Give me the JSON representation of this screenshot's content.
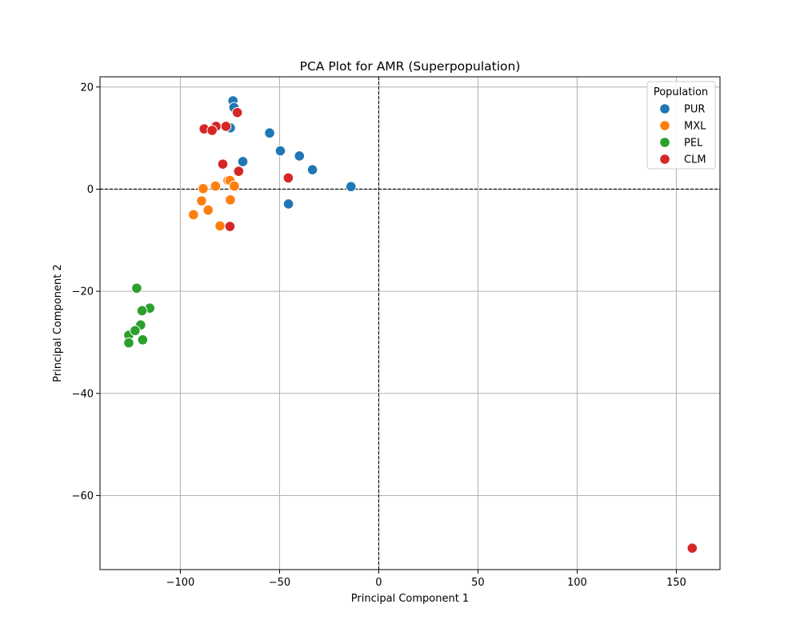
{
  "chart_data": {
    "type": "scatter",
    "title": "PCA Plot for AMR (Superpopulation)",
    "xlabel": "Principal Component 1",
    "ylabel": "Principal Component 2",
    "xlim": [
      -140.5,
      172
    ],
    "ylim": [
      -74.5,
      22
    ],
    "xticks": [
      -100,
      -50,
      0,
      50,
      100,
      150
    ],
    "yticks": [
      20,
      0,
      -20,
      -40,
      -60
    ],
    "xtick_labels": [
      "−100",
      "−50",
      "0",
      "50",
      "100",
      "150"
    ],
    "ytick_labels": [
      "20",
      "0",
      "−20",
      "−40",
      "−60"
    ],
    "grid": true,
    "reference_lines": [
      {
        "axis": "x",
        "value": 0,
        "style": "dashed"
      },
      {
        "axis": "y",
        "value": 0,
        "style": "dashed"
      }
    ],
    "legend": {
      "title": "Population",
      "placement": "top-right"
    },
    "series": [
      {
        "name": "PUR",
        "color": "#1f77b4",
        "points": [
          [
            -73.5,
            17.3
          ],
          [
            -73,
            16
          ],
          [
            -74.8,
            12
          ],
          [
            -55,
            11
          ],
          [
            -49.6,
            7.5
          ],
          [
            -40,
            6.5
          ],
          [
            -68.5,
            5.4
          ],
          [
            -33.4,
            3.8
          ],
          [
            -14,
            0.5
          ],
          [
            -45.5,
            -2.9
          ]
        ]
      },
      {
        "name": "MXL",
        "color": "#ff7f0e",
        "points": [
          [
            -76,
            1.7
          ],
          [
            -75,
            1.7
          ],
          [
            -72.8,
            0.6
          ],
          [
            -82.3,
            0.6
          ],
          [
            -88.5,
            0.1
          ],
          [
            -89.3,
            -2.3
          ],
          [
            -74.8,
            -2.1
          ],
          [
            -86,
            -4.1
          ],
          [
            -93.4,
            -5
          ],
          [
            -80,
            -7.2
          ]
        ]
      },
      {
        "name": "PEL",
        "color": "#2ca02c",
        "points": [
          [
            -122,
            -19.4
          ],
          [
            -115.4,
            -23.3
          ],
          [
            -119.3,
            -23.8
          ],
          [
            -120,
            -26.6
          ],
          [
            -126,
            -28.6
          ],
          [
            -122.8,
            -27.7
          ],
          [
            -126,
            -30.1
          ],
          [
            -119,
            -29.5
          ]
        ]
      },
      {
        "name": "CLM",
        "color": "#d62728",
        "points": [
          [
            -71.3,
            15
          ],
          [
            -88,
            11.8
          ],
          [
            -82,
            12.3
          ],
          [
            -84,
            11.5
          ],
          [
            -77,
            12.3
          ],
          [
            -78.6,
            4.9
          ],
          [
            -70.6,
            3.5
          ],
          [
            -45.6,
            2.2
          ],
          [
            -75,
            -7.3
          ],
          [
            158,
            -70.3
          ]
        ]
      }
    ]
  }
}
